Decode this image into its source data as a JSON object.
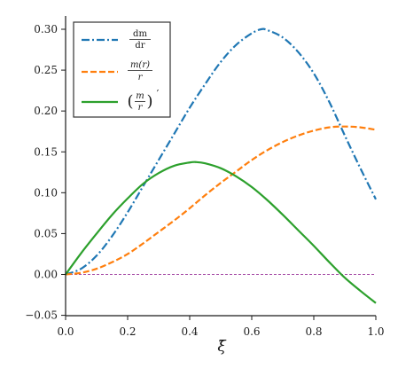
{
  "chart_data": {
    "type": "line",
    "title": "",
    "xlabel": "ξ̄",
    "ylabel": "",
    "xlim": [
      0.0,
      1.0
    ],
    "ylim": [
      -0.05,
      0.32
    ],
    "xticks": [
      "0.0",
      "0.2",
      "0.4",
      "0.6",
      "0.8",
      "1.0"
    ],
    "yticks": [
      "−0.05",
      "0.00",
      "0.05",
      "0.10",
      "0.15",
      "0.20",
      "0.25",
      "0.30"
    ],
    "grid": false,
    "legend_position": "top-left",
    "reference_line": {
      "y": 0.0,
      "color": "#a64ca6",
      "style": "dashed"
    },
    "series": [
      {
        "name": "dm/dr",
        "color": "#1f77b4",
        "style": "dashdot",
        "x": [
          0.0,
          0.05,
          0.1,
          0.15,
          0.2,
          0.25,
          0.3,
          0.35,
          0.4,
          0.45,
          0.5,
          0.55,
          0.6,
          0.63,
          0.65,
          0.7,
          0.75,
          0.8,
          0.85,
          0.9,
          0.95,
          1.0
        ],
        "y": [
          0.0,
          0.007,
          0.023,
          0.047,
          0.076,
          0.108,
          0.14,
          0.172,
          0.204,
          0.233,
          0.26,
          0.281,
          0.295,
          0.3,
          0.299,
          0.29,
          0.272,
          0.246,
          0.211,
          0.17,
          0.13,
          0.092
        ]
      },
      {
        "name": "m(r)/r",
        "color": "#ff7f0e",
        "style": "dashed",
        "x": [
          0.0,
          0.05,
          0.1,
          0.15,
          0.2,
          0.25,
          0.3,
          0.35,
          0.4,
          0.45,
          0.5,
          0.55,
          0.6,
          0.65,
          0.7,
          0.75,
          0.8,
          0.85,
          0.9,
          0.95,
          1.0
        ],
        "y": [
          0.0,
          0.002,
          0.007,
          0.015,
          0.025,
          0.038,
          0.052,
          0.066,
          0.081,
          0.097,
          0.112,
          0.126,
          0.14,
          0.152,
          0.162,
          0.17,
          0.176,
          0.18,
          0.181,
          0.18,
          0.177
        ]
      },
      {
        "name": "(m/r)′",
        "color": "#2ca02c",
        "style": "solid",
        "x": [
          0.0,
          0.05,
          0.1,
          0.15,
          0.2,
          0.25,
          0.3,
          0.35,
          0.4,
          0.42,
          0.45,
          0.5,
          0.55,
          0.6,
          0.65,
          0.7,
          0.75,
          0.8,
          0.85,
          0.9,
          0.95,
          1.0
        ],
        "y": [
          0.0,
          0.026,
          0.05,
          0.073,
          0.093,
          0.111,
          0.124,
          0.133,
          0.137,
          0.1375,
          0.136,
          0.13,
          0.12,
          0.107,
          0.091,
          0.073,
          0.054,
          0.035,
          0.015,
          -0.004,
          -0.02,
          -0.035
        ]
      }
    ],
    "legend_labels": {
      "dm_dr": {
        "num": "dm",
        "den": "dr"
      },
      "m_over_r": {
        "num": "m(r)",
        "den": "r"
      },
      "deriv": {
        "num": "m",
        "den": "r",
        "prime": "′"
      }
    }
  }
}
